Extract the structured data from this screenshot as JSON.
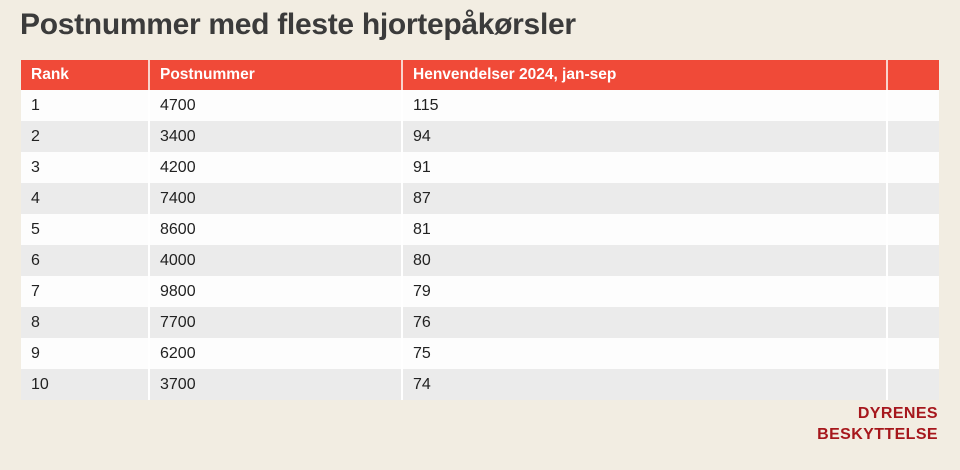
{
  "title": "Postnummer med fleste hjortepåkørsler",
  "colors": {
    "background": "#F2EDE2",
    "header_red": "#F04A38",
    "row_white": "#FDFDFD",
    "row_gray": "#EBEBEB",
    "title_text": "#3B3B3B",
    "cell_text": "#222222",
    "logo_red": "#A6171C"
  },
  "chart_data": {
    "type": "table",
    "title": "Postnummer med fleste hjortepåkørsler",
    "columns": [
      "Rank",
      "Postnummer",
      "Henvendelser 2024, jan-sep",
      ""
    ],
    "rows": [
      [
        "1",
        "4700",
        "115"
      ],
      [
        "2",
        "3400",
        "94"
      ],
      [
        "3",
        "4200",
        "91"
      ],
      [
        "4",
        "7400",
        "87"
      ],
      [
        "5",
        "8600",
        "81"
      ],
      [
        "6",
        "4000",
        "80"
      ],
      [
        "7",
        "9800",
        "79"
      ],
      [
        "8",
        "7700",
        "76"
      ],
      [
        "9",
        "6200",
        "75"
      ],
      [
        "10",
        "3700",
        "74"
      ]
    ],
    "layout": {
      "header_position": "top",
      "zebra_striping": true,
      "grid": "vertical-dividers-only"
    }
  },
  "logo": {
    "line1": "DYRENES",
    "line2": "BESKYTTELSE"
  }
}
